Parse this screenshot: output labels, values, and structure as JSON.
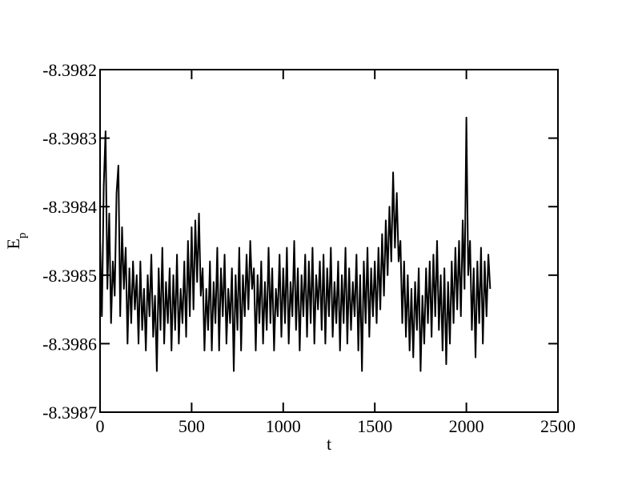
{
  "chart_data": {
    "type": "line",
    "xlabel": "t",
    "ylabel": {
      "text": "E",
      "subscript": "p"
    },
    "xlim": [
      0,
      2500
    ],
    "xticks": [
      0,
      500,
      1000,
      1500,
      2000,
      2500
    ],
    "ylim": [
      -8.3987,
      -8.3982
    ],
    "yticks": [
      -8.3987,
      -8.3986,
      -8.3985,
      -8.3984,
      -8.3983,
      -8.3982
    ],
    "grid": false,
    "series": [
      {
        "color": "#000000",
        "x": [
          0,
          10,
          20,
          30,
          40,
          50,
          60,
          70,
          80,
          90,
          100,
          110,
          120,
          130,
          140,
          150,
          160,
          170,
          180,
          190,
          200,
          210,
          220,
          230,
          240,
          250,
          260,
          270,
          280,
          290,
          300,
          310,
          320,
          330,
          340,
          350,
          360,
          370,
          380,
          390,
          400,
          410,
          420,
          430,
          440,
          450,
          460,
          470,
          480,
          490,
          500,
          510,
          520,
          530,
          540,
          550,
          560,
          570,
          580,
          590,
          600,
          610,
          620,
          630,
          640,
          650,
          660,
          670,
          680,
          690,
          700,
          710,
          720,
          730,
          740,
          750,
          760,
          770,
          780,
          790,
          800,
          810,
          820,
          830,
          840,
          850,
          860,
          870,
          880,
          890,
          900,
          910,
          920,
          930,
          940,
          950,
          960,
          970,
          980,
          990,
          1000,
          1010,
          1020,
          1030,
          1040,
          1050,
          1060,
          1070,
          1080,
          1090,
          1100,
          1110,
          1120,
          1130,
          1140,
          1150,
          1160,
          1170,
          1180,
          1190,
          1200,
          1210,
          1220,
          1230,
          1240,
          1250,
          1260,
          1270,
          1280,
          1290,
          1300,
          1310,
          1320,
          1330,
          1340,
          1350,
          1360,
          1370,
          1380,
          1390,
          1400,
          1410,
          1420,
          1430,
          1440,
          1450,
          1460,
          1470,
          1480,
          1490,
          1500,
          1510,
          1520,
          1530,
          1540,
          1550,
          1560,
          1570,
          1580,
          1590,
          1600,
          1610,
          1620,
          1630,
          1640,
          1650,
          1660,
          1670,
          1680,
          1690,
          1700,
          1710,
          1720,
          1730,
          1740,
          1750,
          1760,
          1770,
          1780,
          1790,
          1800,
          1810,
          1820,
          1830,
          1840,
          1850,
          1860,
          1870,
          1880,
          1890,
          1900,
          1910,
          1920,
          1930,
          1940,
          1950,
          1960,
          1970,
          1980,
          1990,
          2000,
          2010,
          2020,
          2030,
          2040,
          2050,
          2060,
          2070,
          2080,
          2090,
          2100,
          2110,
          2120,
          2130
        ],
        "values": [
          -8.39845,
          -8.39856,
          -8.39837,
          -8.39829,
          -8.39852,
          -8.39841,
          -8.39857,
          -8.39848,
          -8.39853,
          -8.39838,
          -8.39834,
          -8.39856,
          -8.39843,
          -8.39852,
          -8.39846,
          -8.3986,
          -8.39849,
          -8.39857,
          -8.39848,
          -8.39855,
          -8.3985,
          -8.3986,
          -8.39848,
          -8.39858,
          -8.39852,
          -8.39861,
          -8.3985,
          -8.39856,
          -8.39847,
          -8.39859,
          -8.39853,
          -8.39864,
          -8.39849,
          -8.39858,
          -8.39846,
          -8.3986,
          -8.39851,
          -8.39857,
          -8.39849,
          -8.39861,
          -8.3985,
          -8.39858,
          -8.39847,
          -8.3986,
          -8.39852,
          -8.39857,
          -8.39848,
          -8.39859,
          -8.39845,
          -8.39856,
          -8.39843,
          -8.39855,
          -8.39842,
          -8.39851,
          -8.39841,
          -8.39853,
          -8.39849,
          -8.39861,
          -8.39852,
          -8.39858,
          -8.39848,
          -8.39861,
          -8.39851,
          -8.39857,
          -8.39846,
          -8.39861,
          -8.39849,
          -8.39856,
          -8.39847,
          -8.3986,
          -8.39852,
          -8.39857,
          -8.39849,
          -8.39864,
          -8.3985,
          -8.39858,
          -8.39846,
          -8.39861,
          -8.3985,
          -8.39856,
          -8.39847,
          -8.39855,
          -8.39845,
          -8.39852,
          -8.39849,
          -8.39861,
          -8.3985,
          -8.39857,
          -8.39848,
          -8.3986,
          -8.39851,
          -8.39858,
          -8.39846,
          -8.39857,
          -8.39849,
          -8.39861,
          -8.39852,
          -8.39856,
          -8.39847,
          -8.39859,
          -8.39849,
          -8.39857,
          -8.39846,
          -8.3986,
          -8.39851,
          -8.39856,
          -8.39845,
          -8.39858,
          -8.39849,
          -8.39861,
          -8.3985,
          -8.39856,
          -8.39847,
          -8.39859,
          -8.39848,
          -8.39857,
          -8.39846,
          -8.3986,
          -8.3985,
          -8.39855,
          -8.39848,
          -8.39858,
          -8.39847,
          -8.3986,
          -8.39849,
          -8.39856,
          -8.39846,
          -8.39859,
          -8.39851,
          -8.39857,
          -8.39848,
          -8.39861,
          -8.3985,
          -8.39857,
          -8.39846,
          -8.3986,
          -8.39849,
          -8.39858,
          -8.39851,
          -8.39856,
          -8.39847,
          -8.39861,
          -8.3985,
          -8.39864,
          -8.39848,
          -8.39857,
          -8.39846,
          -8.39859,
          -8.39849,
          -8.39856,
          -8.39848,
          -8.39857,
          -8.39846,
          -8.39855,
          -8.39844,
          -8.39853,
          -8.39842,
          -8.3985,
          -8.3984,
          -8.39848,
          -8.39835,
          -8.39846,
          -8.39838,
          -8.39848,
          -8.39845,
          -8.39857,
          -8.39848,
          -8.39859,
          -8.3985,
          -8.39861,
          -8.39852,
          -8.39862,
          -8.39851,
          -8.39858,
          -8.39849,
          -8.39864,
          -8.39853,
          -8.3986,
          -8.39849,
          -8.39857,
          -8.39848,
          -8.39859,
          -8.39847,
          -8.39856,
          -8.39845,
          -8.39858,
          -8.3985,
          -8.39861,
          -8.39849,
          -8.39863,
          -8.39851,
          -8.3986,
          -8.39848,
          -8.39857,
          -8.39846,
          -8.39855,
          -8.39845,
          -8.39856,
          -8.39842,
          -8.39852,
          -8.39827,
          -8.3985,
          -8.39845,
          -8.39858,
          -8.39849,
          -8.39862,
          -8.39848,
          -8.39857,
          -8.39846,
          -8.3986,
          -8.39848,
          -8.39856,
          -8.39847,
          -8.39852
        ]
      }
    ]
  }
}
